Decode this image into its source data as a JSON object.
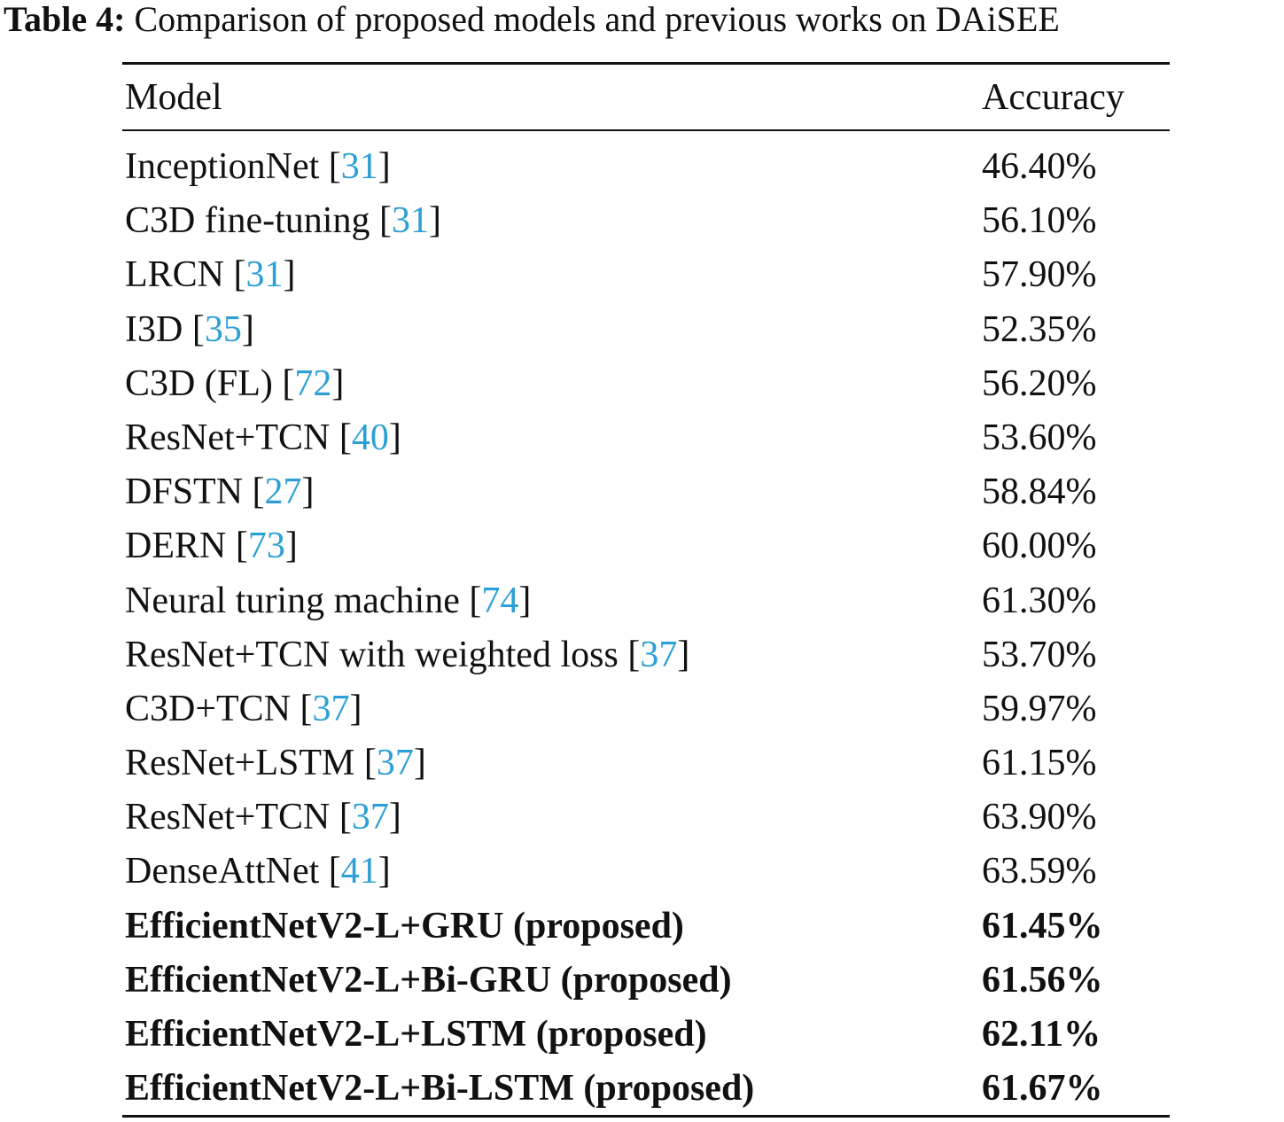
{
  "caption": {
    "label": "Table 4:",
    "text": "Comparison of proposed models and previous works on DAiSEE"
  },
  "table": {
    "headers": {
      "model": "Model",
      "accuracy": "Accuracy"
    },
    "rows": [
      {
        "model": "InceptionNet",
        "ref": "31",
        "accuracy": "46.40%",
        "bold": false
      },
      {
        "model": "C3D fine-tuning",
        "ref": "31",
        "accuracy": "56.10%",
        "bold": false
      },
      {
        "model": "LRCN",
        "ref": "31",
        "accuracy": "57.90%",
        "bold": false
      },
      {
        "model": "I3D",
        "ref": "35",
        "accuracy": "52.35%",
        "bold": false
      },
      {
        "model": "C3D (FL)",
        "ref": "72",
        "accuracy": "56.20%",
        "bold": false
      },
      {
        "model": "ResNet+TCN",
        "ref": "40",
        "accuracy": "53.60%",
        "bold": false
      },
      {
        "model": "DFSTN",
        "ref": "27",
        "accuracy": "58.84%",
        "bold": false
      },
      {
        "model": "DERN",
        "ref": "73",
        "accuracy": "60.00%",
        "bold": false
      },
      {
        "model": "Neural turing machine",
        "ref": "74",
        "accuracy": "61.30%",
        "bold": false
      },
      {
        "model": "ResNet+TCN with weighted loss",
        "ref": "37",
        "accuracy": "53.70%",
        "bold": false
      },
      {
        "model": "C3D+TCN",
        "ref": "37",
        "accuracy": "59.97%",
        "bold": false
      },
      {
        "model": "ResNet+LSTM",
        "ref": "37",
        "accuracy": "61.15%",
        "bold": false
      },
      {
        "model": "ResNet+TCN",
        "ref": "37",
        "accuracy": "63.90%",
        "bold": false
      },
      {
        "model": "DenseAttNet",
        "ref": "41",
        "accuracy": "63.59%",
        "bold": false
      },
      {
        "model": "EfficientNetV2-L+GRU (proposed)",
        "ref": "",
        "accuracy": "61.45%",
        "bold": true
      },
      {
        "model": "EfficientNetV2-L+Bi-GRU (proposed)",
        "ref": "",
        "accuracy": "61.56%",
        "bold": true
      },
      {
        "model": "EfficientNetV2-L+LSTM (proposed)",
        "ref": "",
        "accuracy": "62.11%",
        "bold": true
      },
      {
        "model": "EfficientNetV2-L+Bi-LSTM (proposed)",
        "ref": "",
        "accuracy": "61.67%",
        "bold": true
      }
    ]
  },
  "colors": {
    "citation_link": "#2ca0d6",
    "text": "#111111"
  }
}
